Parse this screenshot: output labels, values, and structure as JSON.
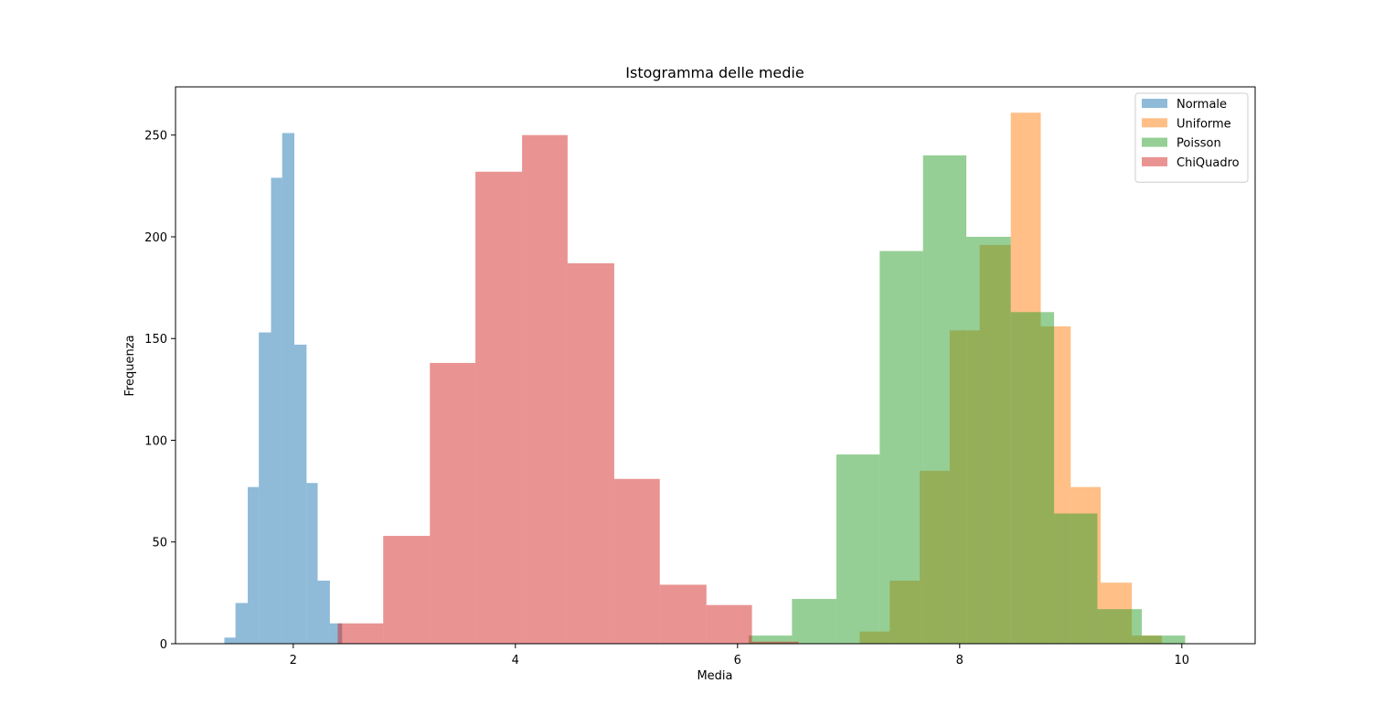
{
  "chart_data": {
    "type": "bar",
    "title": "Istogramma delle medie",
    "xlabel": "Media",
    "ylabel": "Frequenza",
    "xlim": [
      0.94,
      10.66
    ],
    "ylim": [
      0,
      273.7
    ],
    "xticks": [
      2,
      4,
      6,
      8,
      10
    ],
    "yticks": [
      0,
      50,
      100,
      150,
      200,
      250
    ],
    "grid": false,
    "legend": "top-right",
    "bar_alpha": 0.5,
    "series": [
      {
        "name": "Normale",
        "color": "#1f77b4",
        "bins": [
          {
            "x0": 1.38,
            "x1": 1.48,
            "value": 3
          },
          {
            "x0": 1.48,
            "x1": 1.59,
            "value": 20
          },
          {
            "x0": 1.59,
            "x1": 1.69,
            "value": 77
          },
          {
            "x0": 1.69,
            "x1": 1.8,
            "value": 153
          },
          {
            "x0": 1.8,
            "x1": 1.9,
            "value": 229
          },
          {
            "x0": 1.9,
            "x1": 2.01,
            "value": 251
          },
          {
            "x0": 2.01,
            "x1": 2.12,
            "value": 147
          },
          {
            "x0": 2.12,
            "x1": 2.22,
            "value": 79
          },
          {
            "x0": 2.22,
            "x1": 2.33,
            "value": 31
          },
          {
            "x0": 2.33,
            "x1": 2.44,
            "value": 10
          }
        ]
      },
      {
        "name": "Uniforme",
        "color": "#ff7f0e",
        "bins": [
          {
            "x0": 7.1,
            "x1": 7.37,
            "value": 6
          },
          {
            "x0": 7.37,
            "x1": 7.64,
            "value": 31
          },
          {
            "x0": 7.64,
            "x1": 7.91,
            "value": 85
          },
          {
            "x0": 7.91,
            "x1": 8.18,
            "value": 154
          },
          {
            "x0": 8.18,
            "x1": 8.46,
            "value": 196
          },
          {
            "x0": 8.46,
            "x1": 8.73,
            "value": 261
          },
          {
            "x0": 8.73,
            "x1": 9.0,
            "value": 156
          },
          {
            "x0": 9.0,
            "x1": 9.27,
            "value": 77
          },
          {
            "x0": 9.27,
            "x1": 9.55,
            "value": 30
          },
          {
            "x0": 9.55,
            "x1": 9.82,
            "value": 4
          }
        ]
      },
      {
        "name": "Poisson",
        "color": "#2ca02c",
        "bins": [
          {
            "x0": 6.1,
            "x1": 6.49,
            "value": 4
          },
          {
            "x0": 6.49,
            "x1": 6.89,
            "value": 22
          },
          {
            "x0": 6.89,
            "x1": 7.28,
            "value": 93
          },
          {
            "x0": 7.28,
            "x1": 7.67,
            "value": 193
          },
          {
            "x0": 7.67,
            "x1": 8.06,
            "value": 240
          },
          {
            "x0": 8.06,
            "x1": 8.46,
            "value": 200
          },
          {
            "x0": 8.46,
            "x1": 8.85,
            "value": 163
          },
          {
            "x0": 8.85,
            "x1": 9.24,
            "value": 64
          },
          {
            "x0": 9.24,
            "x1": 9.64,
            "value": 17
          },
          {
            "x0": 9.64,
            "x1": 10.03,
            "value": 4
          }
        ]
      },
      {
        "name": "ChiQuadro",
        "color": "#d62728",
        "bins": [
          {
            "x0": 2.4,
            "x1": 2.81,
            "value": 10
          },
          {
            "x0": 2.81,
            "x1": 3.23,
            "value": 53
          },
          {
            "x0": 3.23,
            "x1": 3.64,
            "value": 138
          },
          {
            "x0": 3.64,
            "x1": 4.06,
            "value": 232
          },
          {
            "x0": 4.06,
            "x1": 4.47,
            "value": 250
          },
          {
            "x0": 4.47,
            "x1": 4.89,
            "value": 187
          },
          {
            "x0": 4.89,
            "x1": 5.3,
            "value": 81
          },
          {
            "x0": 5.3,
            "x1": 5.72,
            "value": 29
          },
          {
            "x0": 5.72,
            "x1": 6.13,
            "value": 19
          },
          {
            "x0": 6.13,
            "x1": 6.55,
            "value": 1
          }
        ]
      }
    ]
  }
}
